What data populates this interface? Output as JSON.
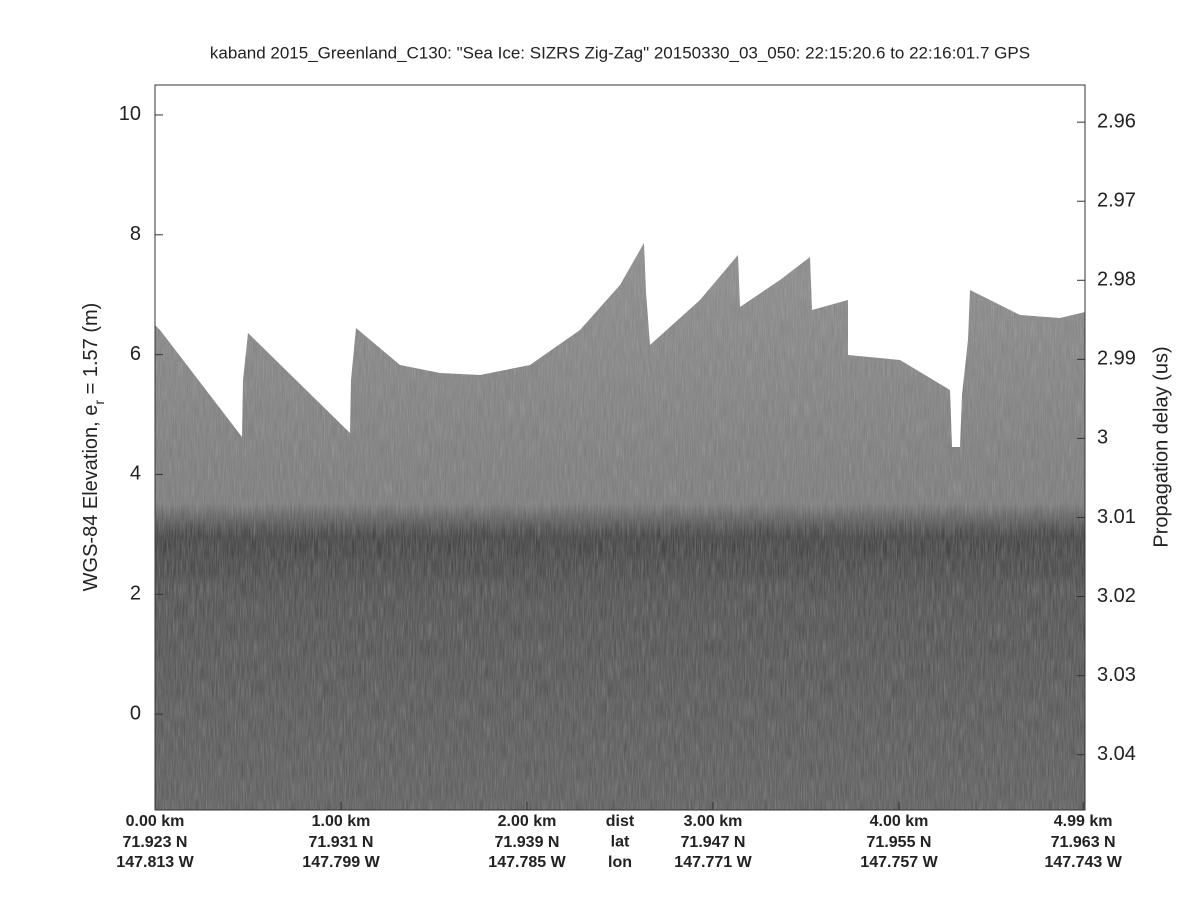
{
  "chart_data": {
    "type": "echogram",
    "title": "kaband 2015_Greenland_C130: \"Sea Ice: SIZRS Zig-Zag\"  20150330_03_050: 22:15:20.6 to 22:16:01.7 GPS",
    "ylabel": {
      "text": "WGS-84 Elevation, e",
      "subscript": "r",
      "after": " = 1.57 (m)"
    },
    "y2label": "Propagation delay (us)",
    "xlim": [
      0,
      5.0
    ],
    "xticks": [
      {
        "value": 0,
        "label": "0.00 km"
      },
      {
        "value": 1,
        "label": "1.00 km"
      },
      {
        "value": 2,
        "label": "2.00 km"
      },
      {
        "value": 3,
        "label": "3.00 km"
      },
      {
        "value": 4,
        "label": "4.00 km"
      },
      {
        "value": 4.99,
        "label": "4.99 km"
      }
    ],
    "lat_labels": [
      "71.923 N",
      "71.931 N",
      "71.939 N",
      "71.947 N",
      "71.955 N",
      "71.963 N"
    ],
    "lon_labels": [
      "147.813 W",
      "147.799 W",
      "147.785 W",
      "147.771 W",
      "147.757 W",
      "147.743 W"
    ],
    "row_labels": [
      "dist",
      "lat",
      "lon"
    ],
    "ylim": [
      -1.6,
      10.5
    ],
    "yticks": [
      0,
      2,
      4,
      6,
      8,
      10
    ],
    "y2lim": [
      3.047,
      2.9553
    ],
    "y2ticks": [
      2.96,
      2.97,
      2.98,
      2.99,
      3,
      3.01,
      3.02,
      3.03,
      3.04
    ]
  }
}
